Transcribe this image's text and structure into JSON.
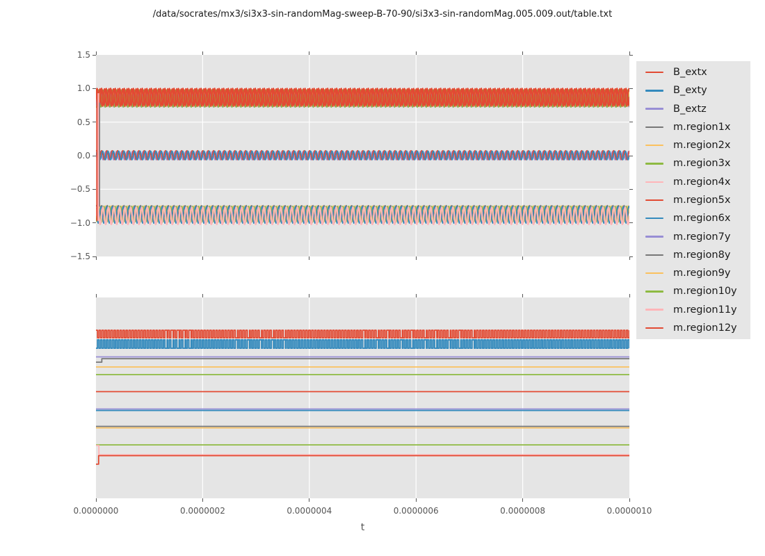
{
  "figure": {
    "title": "/data/socrates/mx3/si3x3-sin-randomMag-sweep-B-70-90/si3x3-sin-randomMag.005.009.out/table.txt",
    "xlabel": "t",
    "background": "#ffffff",
    "axes_background": "#e5e5e5",
    "grid_color": "#ffffff",
    "tick_label_color": "#555555",
    "text_color": "#1a1a1a"
  },
  "palette": {
    "red": "#e24a33",
    "blue": "#348abd",
    "purple": "#988ed5",
    "gray": "#777777",
    "orange": "#fbc15e",
    "green": "#8eba42",
    "pink": "#ffb5b8"
  },
  "axes": {
    "x": {
      "label": "t",
      "ticks": [
        "0.0000000",
        "0.0000002",
        "0.0000004",
        "0.0000006",
        "0.0000008",
        "0.0000010"
      ]
    },
    "y_top": {
      "ticks": [
        "1.5",
        "1.0",
        "0.5",
        "0.0",
        "−0.5",
        "−1.0",
        "−1.5"
      ]
    },
    "y_bottom": {
      "ticks": []
    }
  },
  "legend": {
    "entries": [
      {
        "label": "B_extx",
        "color": "#e24a33"
      },
      {
        "label": "B_exty",
        "color": "#348abd"
      },
      {
        "label": "B_extz",
        "color": "#988ed5"
      },
      {
        "label": "m.region1x",
        "color": "#777777"
      },
      {
        "label": "m.region2x",
        "color": "#fbc15e"
      },
      {
        "label": "m.region3x",
        "color": "#8eba42"
      },
      {
        "label": "m.region4x",
        "color": "#ffb5b8"
      },
      {
        "label": "m.region5x",
        "color": "#e24a33"
      },
      {
        "label": "m.region6x",
        "color": "#348abd"
      },
      {
        "label": "m.region7y",
        "color": "#988ed5"
      },
      {
        "label": "m.region8y",
        "color": "#777777"
      },
      {
        "label": "m.region9y",
        "color": "#fbc15e"
      },
      {
        "label": "m.region10y",
        "color": "#8eba42"
      },
      {
        "label": "m.region11y",
        "color": "#ffb5b8"
      },
      {
        "label": "m.region12y",
        "color": "#e24a33"
      }
    ]
  },
  "chart_data": [
    {
      "type": "line",
      "panel": "top",
      "xlim": [
        0.0,
        1e-06
      ],
      "ylim": [
        -1.5,
        1.5
      ],
      "yrange": [
        -1.5,
        1.5
      ],
      "grid": true,
      "grid_x": [
        0.2,
        0.4,
        0.6,
        0.8
      ],
      "grid_y": [
        1.0,
        0.5,
        0.0,
        -0.5,
        -1.0
      ],
      "description": "Dense high-frequency oscillations in three bands: ~+0.75..+1.0 (red B_extx dominant over gray/orange/green region traces), ~0 (blue B_exty, purple B_extz, red), ~-0.75..-1.0 (pink m.region4x dominant over blue/green/orange/gray); brief vertical transients at t=0",
      "series": [
        {
          "name": "top-band-underlay-gray (m.region1x)",
          "color": "#777777",
          "wave": "sine",
          "mean": 0.85,
          "amp": 0.12,
          "cycles": 118,
          "phase": 2.1,
          "width": 1.5
        },
        {
          "name": "top-band-underlay-orange (m.region2x)",
          "color": "#fbc15e",
          "wave": "sine",
          "mean": 0.855,
          "amp": 0.125,
          "cycles": 118,
          "phase": 0.9,
          "width": 1.5
        },
        {
          "name": "top-band-underlay-purple",
          "color": "#988ed5",
          "wave": "sine",
          "mean": 0.845,
          "amp": 0.12,
          "cycles": 118,
          "phase": 5.3,
          "width": 1.4
        },
        {
          "name": "top-band-underlay-green (m.region3x)",
          "color": "#8eba42",
          "wave": "sine",
          "mean": 0.85,
          "amp": 0.13,
          "cycles": 118,
          "phase": 4.2,
          "width": 1.5
        },
        {
          "name": "bottom-band-underlay-gray",
          "color": "#777777",
          "wave": "sine",
          "mean": -0.86,
          "amp": 0.12,
          "cycles": 96,
          "phase": 1.3,
          "width": 1.5
        },
        {
          "name": "bottom-band-underlay-orange",
          "color": "#fbc15e",
          "wave": "sine",
          "mean": -0.865,
          "amp": 0.12,
          "cycles": 96,
          "phase": 3.1,
          "width": 1.5
        },
        {
          "name": "bottom-band-underlay-green",
          "color": "#8eba42",
          "wave": "sine",
          "mean": -0.875,
          "amp": 0.125,
          "cycles": 96,
          "phase": 5.2,
          "width": 1.5
        },
        {
          "name": "bottom-band-underlay-blue (m.region6x)",
          "color": "#348abd",
          "wave": "sine",
          "mean": -0.88,
          "amp": 0.125,
          "cycles": 96,
          "phase": 2.2,
          "width": 1.7
        },
        {
          "name": "B_extz",
          "color": "#988ed5",
          "wave": "sine",
          "mean": 0.0,
          "amp": 0.062,
          "cycles": 100,
          "phase": 2.7,
          "width": 1.6
        },
        {
          "name": "mid-band-red (m.region5x)",
          "color": "#e24a33",
          "wave": "sine",
          "mean": 0.008,
          "amp": 0.068,
          "cycles": 100,
          "phase": 1.3,
          "width": 1.6
        },
        {
          "name": "B_exty",
          "color": "#348abd",
          "wave": "sine",
          "mean": 0.004,
          "amp": 0.065,
          "cycles": 100,
          "phase": 0.0,
          "width": 1.7
        },
        {
          "name": "m.region4x",
          "color": "#ffb5b8",
          "wave": "sine",
          "mean": -0.895,
          "amp": 0.128,
          "cycles": 96,
          "phase": 0.0,
          "width": 2.3
        },
        {
          "name": "top-band-red-2",
          "color": "#e24a33",
          "wave": "sine",
          "mean": 0.868,
          "amp": 0.13,
          "cycles": 118,
          "phase": 2.4,
          "width": 1.8
        },
        {
          "name": "B_extx",
          "color": "#e24a33",
          "wave": "sine",
          "mean": 0.875,
          "amp": 0.125,
          "cycles": 118,
          "phase": 0.0,
          "width": 2.3
        }
      ],
      "transients": [
        {
          "name": "startup-transient-red",
          "color": "#e24a33",
          "x": 0.0018,
          "y1": 0.97,
          "y2": -0.97,
          "width": 2.0
        },
        {
          "name": "startup-transient-pink",
          "color": "#ffb5b8",
          "x": 0.0045,
          "y1": 0.93,
          "y2": -0.97,
          "width": 2.2
        },
        {
          "name": "startup-transient-gray",
          "color": "#777777",
          "x": 0.0068,
          "y1": 0.79,
          "y2": -0.76,
          "width": 1.6
        }
      ]
    },
    {
      "type": "line",
      "panel": "bottom",
      "xlim": [
        0.0,
        1e-06
      ],
      "ylim_note": "no y tick labels shown; series values given as fraction of panel height from bottom",
      "yrange": [
        0,
        1
      ],
      "grid": true,
      "grid_x": [
        0.2,
        0.4,
        0.6,
        0.8
      ],
      "grid_y": [],
      "description": "Red and blue square waves near the top over ten flat horizontal traces; small step transients near t=0 on the gray, pink and bottom red traces",
      "series": [
        {
          "name": "flat-line-purple",
          "color": "#988ed5",
          "wave": "const",
          "value": 0.704,
          "width": 1.8
        },
        {
          "name": "flat-line-gray-with-step",
          "color": "#777777",
          "wave": "steps",
          "points": [
            [
              0,
              0.678
            ],
            [
              0.011,
              0.678
            ],
            [
              0.011,
              0.695
            ],
            [
              1,
              0.695
            ]
          ],
          "width": 1.8
        },
        {
          "name": "flat-line-orange",
          "color": "#fbc15e",
          "wave": "const",
          "value": 0.654,
          "width": 1.7
        },
        {
          "name": "flat-line-green",
          "color": "#8eba42",
          "wave": "const",
          "value": 0.616,
          "width": 1.8
        },
        {
          "name": "flat-line-red",
          "color": "#e24a33",
          "wave": "const",
          "value": 0.531,
          "width": 1.8
        },
        {
          "name": "flat-line-purple-2",
          "color": "#988ed5",
          "wave": "const",
          "value": 0.445,
          "width": 1.6
        },
        {
          "name": "flat-line-blue",
          "color": "#348abd",
          "wave": "const",
          "value": 0.4375,
          "width": 1.9
        },
        {
          "name": "flat-line-gray-2",
          "color": "#777777",
          "wave": "const",
          "value": 0.358,
          "width": 1.8
        },
        {
          "name": "flat-line-orange-2",
          "color": "#fbc15e",
          "wave": "const",
          "value": 0.3505,
          "width": 1.6
        },
        {
          "name": "flat-line-green-2",
          "color": "#8eba42",
          "wave": "const",
          "value": 0.266,
          "width": 1.8
        },
        {
          "name": "flat-line-pink-with-step",
          "color": "#ffb5b8",
          "wave": "steps",
          "points": [
            [
              0,
              0.263
            ],
            [
              0.0055,
              0.263
            ],
            [
              0.0055,
              0.2165
            ],
            [
              1,
              0.2165
            ]
          ],
          "width": 1.8
        },
        {
          "name": "flat-line-red-with-step",
          "color": "#e24a33",
          "wave": "steps",
          "points": [
            [
              0,
              0.17
            ],
            [
              0.005,
              0.17
            ],
            [
              0.005,
              0.2125
            ],
            [
              1,
              0.2125
            ]
          ],
          "width": 1.8
        },
        {
          "name": "square-wave-red",
          "color": "#e24a33",
          "wave": "square",
          "high": 0.837,
          "low": 0.799,
          "cycles": 178,
          "phase": 0,
          "width": 1.8
        },
        {
          "name": "square-wave-blue",
          "color": "#348abd",
          "wave": "square",
          "high": 0.789,
          "low": 0.747,
          "cycles": 178,
          "phase": 0.5,
          "width": 1.9
        }
      ],
      "transients": []
    }
  ]
}
